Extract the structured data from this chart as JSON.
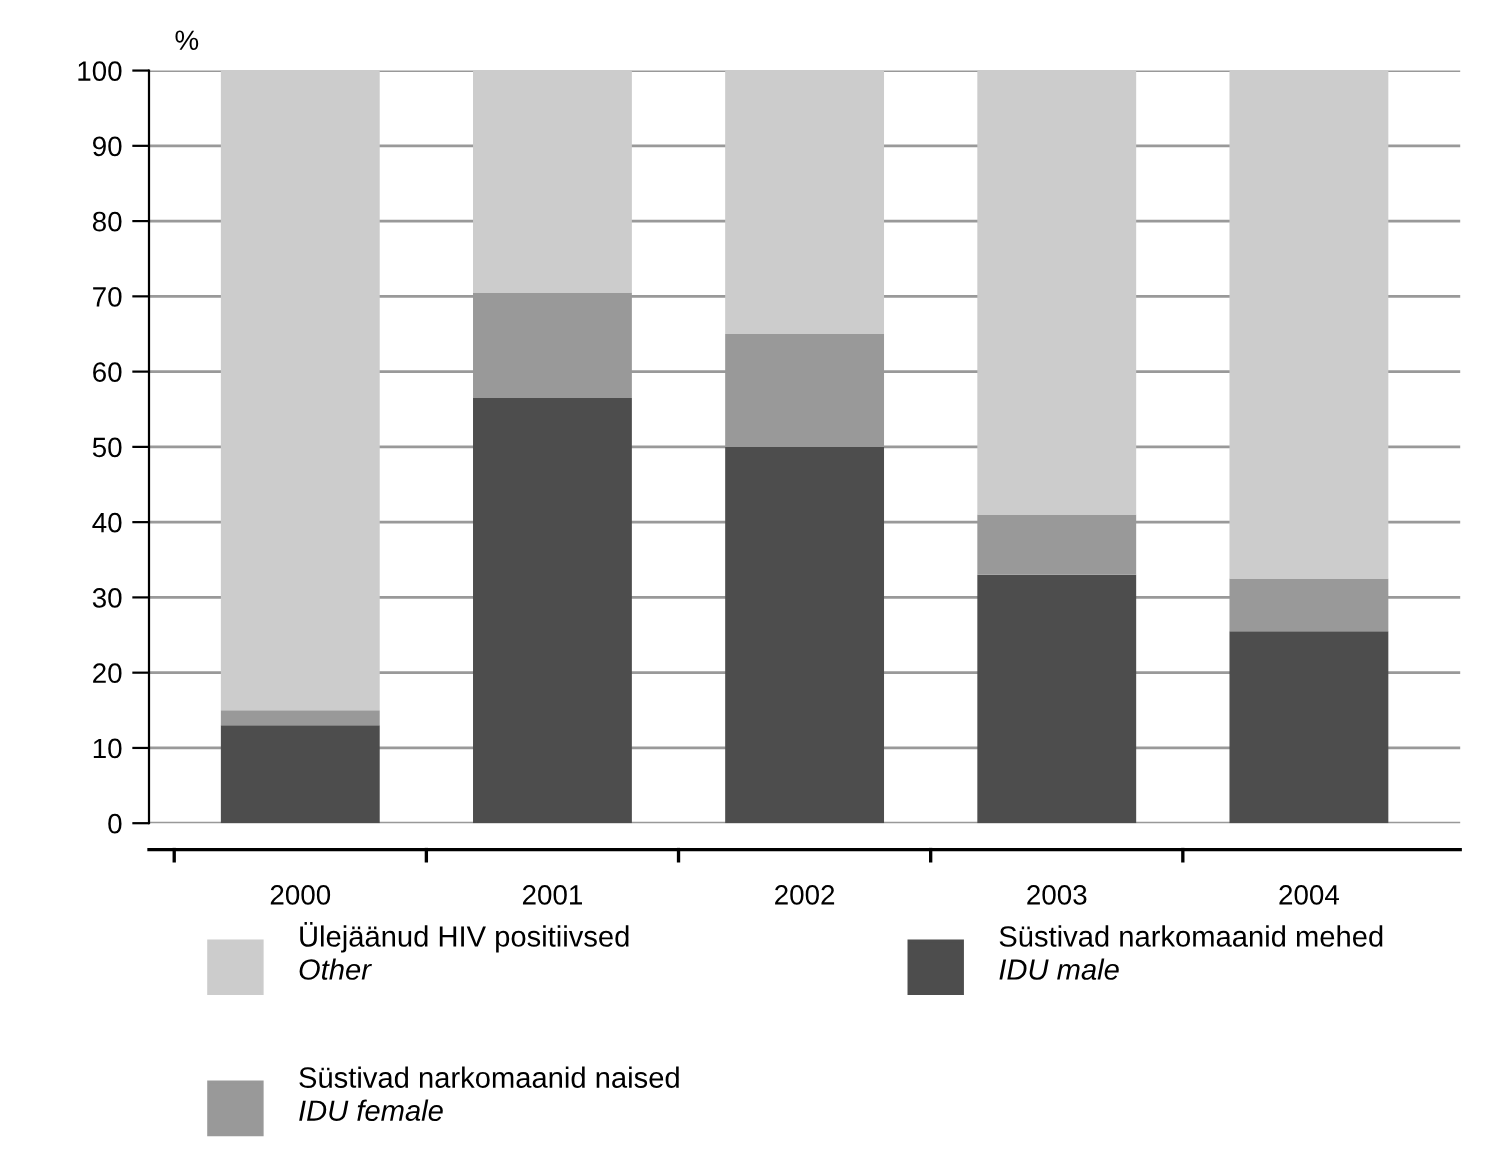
{
  "chart_data": {
    "type": "bar",
    "stacked": true,
    "ylabel": "%",
    "categories": [
      "2000",
      "2001",
      "2002",
      "2003",
      "2004"
    ],
    "series": [
      {
        "name": "Süstivad narkomaanid mehed\nIDU male",
        "color": "#4d4d4d",
        "values": [
          13,
          56.5,
          50,
          33,
          25.5
        ]
      },
      {
        "name": "Süstivad narkomaanid naised\nIDU female",
        "color": "#999999",
        "values": [
          2,
          14,
          15,
          8,
          7
        ]
      },
      {
        "name": "Ülejäänud HIV positiivsed\nOther",
        "color": "#cccccc",
        "values": [
          85,
          29.5,
          35,
          59,
          67.5
        ]
      }
    ],
    "ylim": [
      0,
      100
    ],
    "yticks": [
      0,
      10,
      20,
      30,
      40,
      50,
      60,
      70,
      80,
      90,
      100
    ],
    "grid": "y",
    "legend": "bottom"
  }
}
